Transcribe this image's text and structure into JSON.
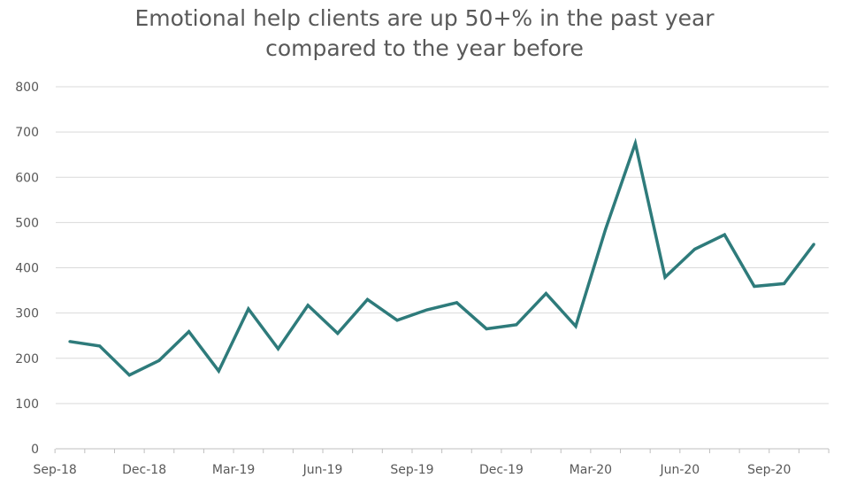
{
  "chart_data": {
    "type": "line",
    "title_lines": [
      "Emotional help clients are up 50+% in the past year",
      "compared to the year before"
    ],
    "xlabel": "",
    "ylabel": "",
    "ylim": [
      0,
      800
    ],
    "y_ticks": [
      0,
      100,
      200,
      300,
      400,
      500,
      600,
      700,
      800
    ],
    "x_tick_labels": [
      "Sep-18",
      "Dec-18",
      "Mar-19",
      "Jun-19",
      "Sep-19",
      "Dec-19",
      "Mar-20",
      "Jun-20",
      "Sep-20"
    ],
    "categories": [
      "Sep-18",
      "Oct-18",
      "Nov-18",
      "Dec-18",
      "Jan-19",
      "Feb-19",
      "Mar-19",
      "Apr-19",
      "May-19",
      "Jun-19",
      "Jul-19",
      "Aug-19",
      "Sep-19",
      "Oct-19",
      "Nov-19",
      "Dec-19",
      "Jan-20",
      "Feb-20",
      "Mar-20",
      "Apr-20",
      "May-20",
      "Jun-20",
      "Jul-20",
      "Aug-20",
      "Sep-20",
      "Oct-20"
    ],
    "series": [
      {
        "values": [
          237,
          227,
          163,
          195,
          259,
          172,
          309,
          221,
          317,
          255,
          330,
          284,
          307,
          323,
          265,
          274,
          343,
          271,
          485,
          675,
          379,
          441,
          473,
          359,
          365,
          452
        ],
        "color": "#2e7b7b"
      }
    ],
    "grid": true,
    "legend": "none",
    "gridline_color": "#d9d9d9",
    "axis_color": "#bfbfbf",
    "text_color": "#595959"
  }
}
